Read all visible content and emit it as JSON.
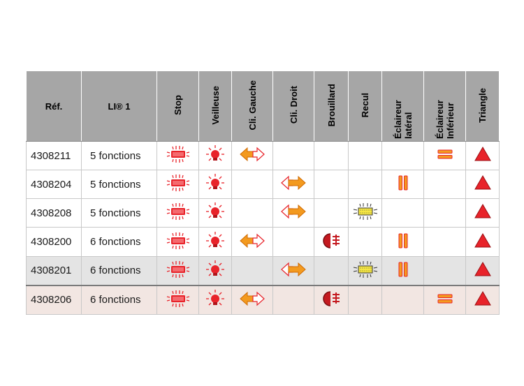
{
  "headers": {
    "ref": "Réf.",
    "li": "LI® 1",
    "stop": "Stop",
    "veilleuse": "Veilleuse",
    "cli_gauche": "Cli. Gauche",
    "cli_droit": "Cli. Droit",
    "brouillard": "Brouillard",
    "recul": "Recul",
    "eclaireur_lateral": "Éclaireur latéral",
    "eclaireur_inferieur": "Éclaireur Inférieur",
    "triangle": "Triangle"
  },
  "rows": [
    {
      "ref": "4308211",
      "li": "5 fonctions",
      "stop": true,
      "veilleuse": true,
      "cli_gauche": true,
      "cli_droit": false,
      "brouillard": false,
      "recul": false,
      "eclaireur_lateral": false,
      "eclaireur_inferieur": true,
      "triangle": true
    },
    {
      "ref": "4308204",
      "li": "5 fonctions",
      "stop": true,
      "veilleuse": true,
      "cli_gauche": false,
      "cli_droit": true,
      "brouillard": false,
      "recul": false,
      "eclaireur_lateral": true,
      "eclaireur_inferieur": false,
      "triangle": true
    },
    {
      "ref": "4308208",
      "li": "5 fonctions",
      "stop": true,
      "veilleuse": true,
      "cli_gauche": false,
      "cli_droit": true,
      "brouillard": false,
      "recul": true,
      "eclaireur_lateral": false,
      "eclaireur_inferieur": false,
      "triangle": true
    },
    {
      "ref": "4308200",
      "li": "6 fonctions",
      "stop": true,
      "veilleuse": true,
      "cli_gauche": true,
      "cli_droit": false,
      "brouillard": true,
      "recul": false,
      "eclaireur_lateral": true,
      "eclaireur_inferieur": false,
      "triangle": true
    },
    {
      "ref": "4308201",
      "li": "6 fonctions",
      "stop": true,
      "veilleuse": true,
      "cli_gauche": false,
      "cli_droit": true,
      "brouillard": false,
      "recul": true,
      "eclaireur_lateral": true,
      "eclaireur_inferieur": false,
      "triangle": true
    },
    {
      "ref": "4308206",
      "li": "6 fonctions",
      "stop": true,
      "veilleuse": true,
      "cli_gauche": true,
      "cli_droit": false,
      "brouillard": true,
      "recul": false,
      "eclaireur_lateral": false,
      "eclaireur_inferieur": true,
      "triangle": true
    }
  ],
  "icons": {
    "stop": "stop-light-icon",
    "veilleuse": "position-light-icon",
    "cli_gauche": "left-indicator-icon",
    "cli_droit": "right-indicator-icon",
    "brouillard": "fog-light-icon",
    "recul": "reverse-light-icon",
    "eclaireur_lateral": "side-marker-icon",
    "eclaireur_inferieur": "lower-marker-icon",
    "triangle": "triangle-reflector-icon"
  },
  "colors": {
    "header_bg": "#a6a6a6",
    "red": "#e8232a",
    "orange": "#f39a1f",
    "yellow": "#f5e642",
    "row5_bg": "#e4e4e4",
    "row6_bg": "#f2e6e2"
  }
}
